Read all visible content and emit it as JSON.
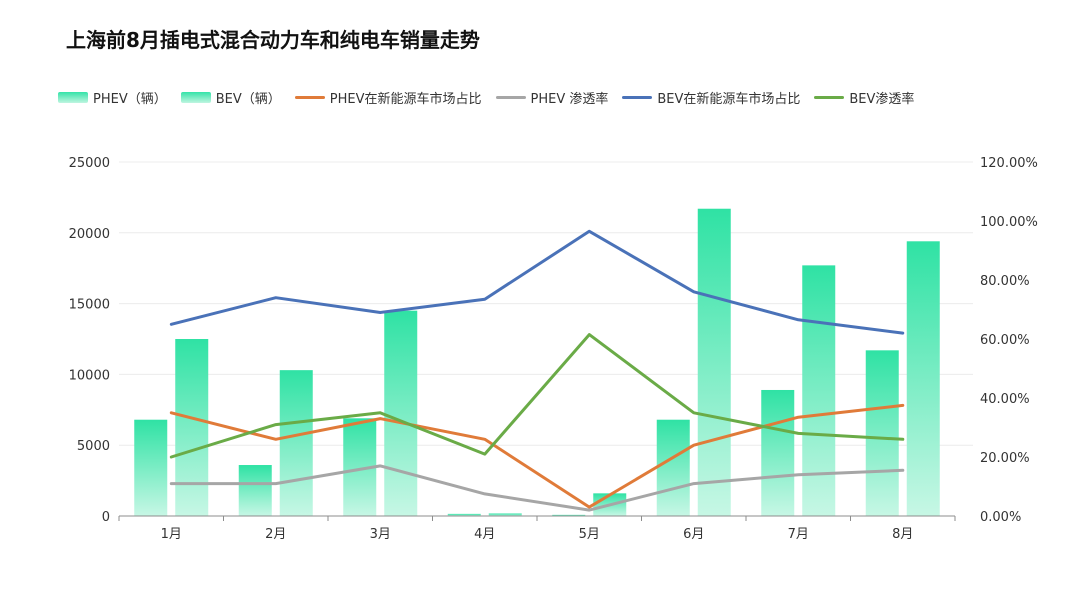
{
  "chart_data": {
    "type": "bar",
    "title": "上海前8月插电式混合动力车和纯电车销量走势",
    "categories": [
      "1月",
      "2月",
      "3月",
      "4月",
      "5月",
      "6月",
      "7月",
      "8月"
    ],
    "ylim": [
      0,
      25000
    ],
    "y2lim": [
      0,
      1.2
    ],
    "y_ticks": [
      "0",
      "5000",
      "10000",
      "15000",
      "20000",
      "25000"
    ],
    "y2_ticks": [
      "0.00%",
      "20.00%",
      "40.00%",
      "60.00%",
      "80.00%",
      "100.00%",
      "120.00%"
    ],
    "grid": true,
    "legend_position": "top",
    "series": [
      {
        "name": "PHEV（辆）",
        "kind": "bar",
        "axis": "left",
        "values": [
          6800,
          3600,
          6900,
          150,
          80,
          6800,
          8900,
          11700
        ]
      },
      {
        "name": "BEV（辆）",
        "kind": "bar",
        "axis": "left",
        "values": [
          12500,
          10300,
          14500,
          180,
          1600,
          21700,
          17700,
          19400
        ]
      },
      {
        "name": "PHEV在新能源车市场占比",
        "kind": "line",
        "axis": "right",
        "color": "#e07b39",
        "values": [
          0.35,
          0.26,
          0.33,
          0.26,
          0.03,
          0.24,
          0.335,
          0.375
        ]
      },
      {
        "name": "PHEV  渗透率",
        "kind": "line",
        "axis": "right",
        "color": "#a6a6a6",
        "values": [
          0.11,
          0.11,
          0.17,
          0.075,
          0.02,
          0.11,
          0.14,
          0.155
        ]
      },
      {
        "name": "BEV在新能源车市场占比",
        "kind": "line",
        "axis": "right",
        "color": "#4a72b8",
        "values": [
          0.65,
          0.74,
          0.69,
          0.735,
          0.965,
          0.76,
          0.665,
          0.62
        ]
      },
      {
        "name": "BEV渗透率",
        "kind": "line",
        "axis": "right",
        "color": "#6aab47",
        "values": [
          0.2,
          0.31,
          0.35,
          0.21,
          0.615,
          0.35,
          0.28,
          0.26
        ]
      }
    ]
  }
}
